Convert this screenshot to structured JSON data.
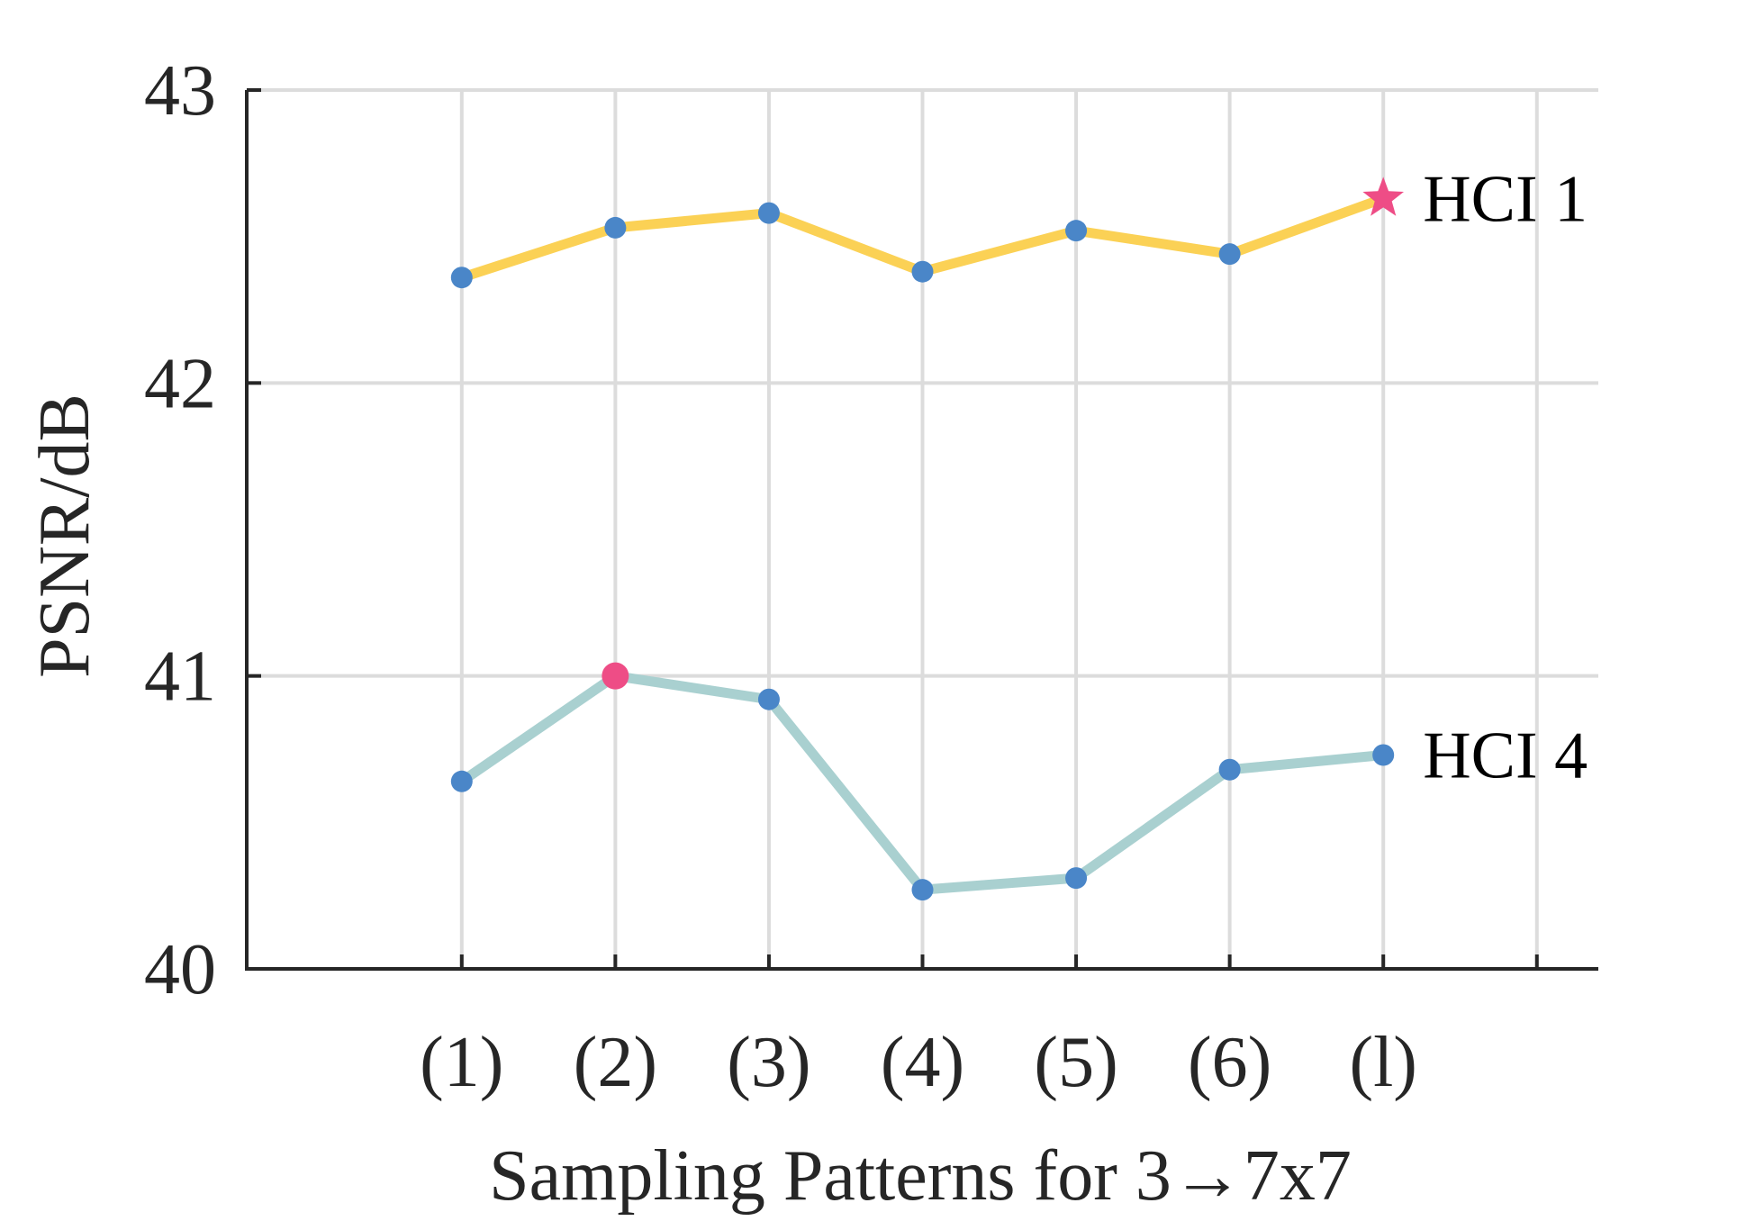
{
  "chart_data": {
    "type": "line",
    "title": "",
    "xlabel": "Sampling Patterns for 3→7x7",
    "ylabel": "PSNR/dB",
    "categories": [
      "(1)",
      "(2)",
      "(3)",
      "(4)",
      "(5)",
      "(6)",
      "(l)"
    ],
    "x_positions": [
      1,
      2,
      3,
      4,
      5,
      6,
      7
    ],
    "xlim": [
      -0.4,
      8.4
    ],
    "x_grid_ticks": [
      1,
      2,
      3,
      4,
      5,
      6,
      7,
      8
    ],
    "ylim": [
      40,
      43
    ],
    "yticks": [
      40,
      41,
      42,
      43
    ],
    "ytick_labels": [
      "40",
      "41",
      "42",
      "43"
    ],
    "grid": true,
    "series": [
      {
        "name": "HCI 1",
        "values": [
          42.36,
          42.53,
          42.58,
          42.38,
          42.52,
          42.44,
          42.63
        ],
        "line_color": "#fbd155",
        "marker_color": "#4a86c8",
        "highlight_index": 6,
        "highlight_marker": "star",
        "highlight_color": "#ee4d86"
      },
      {
        "name": "HCI 4",
        "values": [
          40.64,
          41.0,
          40.92,
          40.27,
          40.31,
          40.68,
          40.73
        ],
        "line_color": "#a9d0d0",
        "marker_color": "#4a86c8",
        "highlight_index": 1,
        "highlight_marker": "circle",
        "highlight_color": "#ee4d86"
      }
    ]
  }
}
